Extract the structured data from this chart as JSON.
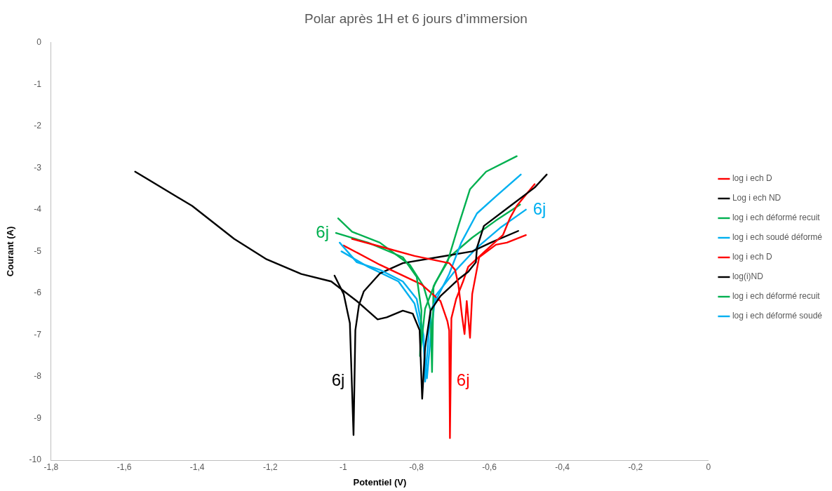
{
  "chart_data": {
    "type": "line",
    "title": "Polar après 1H et 6 jours d’immersion",
    "xlabel": "Potentiel (V)",
    "ylabel": "Courant (A)",
    "xlim": [
      -1.8,
      0
    ],
    "xticks": [
      {
        "value": -1.8,
        "label": "-1,8"
      },
      {
        "value": -1.6,
        "label": "-1,6"
      },
      {
        "value": -1.4,
        "label": "-1,4"
      },
      {
        "value": -1.2,
        "label": "-1,2"
      },
      {
        "value": -1,
        "label": "-1"
      },
      {
        "value": -0.8,
        "label": "-0,8"
      },
      {
        "value": -0.6,
        "label": "-0,6"
      },
      {
        "value": -0.4,
        "label": "-0,4"
      },
      {
        "value": -0.2,
        "label": "-0,2"
      },
      0
    ],
    "ylim": [
      -10,
      0
    ],
    "yticks": [
      -10,
      -9,
      -8,
      -7,
      -6,
      -5,
      -4,
      -3,
      -2,
      -1,
      0
    ],
    "grid": false,
    "legend": "right",
    "marker": "none",
    "line_style": "solid",
    "annotations": [
      {
        "text": "6j",
        "x": -0.977,
        "y": -8.1
      },
      {
        "text": "6j",
        "x": -0.709,
        "y": -8.1
      },
      {
        "text": "6j",
        "x": -1.02,
        "y": -4.56
      },
      {
        "text": "6j",
        "x": -0.5,
        "y": -4.0
      }
    ],
    "series": [
      {
        "name": "log i ech D",
        "color": "#ff0000",
        "x": [
          -0.976,
          -0.9,
          -0.805,
          -0.738,
          -0.71,
          -0.694,
          -0.685,
          -0.675,
          -0.668,
          -0.662,
          -0.653,
          -0.647,
          -0.628,
          -0.582,
          -0.552,
          -0.5
        ],
        "values": [
          -4.7,
          -4.88,
          -5.11,
          -5.23,
          -5.28,
          -5.44,
          -5.79,
          -6.54,
          -6.98,
          -6.19,
          -7.07,
          -6.02,
          -5.14,
          -4.84,
          -4.79,
          -4.61
        ]
      },
      {
        "name": "Log i ech ND",
        "color": "#000000",
        "x": [
          -1.57,
          -1.414,
          -1.299,
          -1.21,
          -1.115,
          -1.033,
          -0.963,
          -0.906,
          -0.881,
          -0.837,
          -0.81,
          -0.791,
          -0.784,
          -0.776,
          -0.761,
          -0.734,
          -0.685,
          -0.658,
          -0.637,
          -0.634,
          -0.615,
          -0.538,
          -0.476,
          -0.443
        ],
        "values": [
          -3.09,
          -3.91,
          -4.7,
          -5.19,
          -5.54,
          -5.72,
          -6.19,
          -6.63,
          -6.58,
          -6.42,
          -6.49,
          -6.89,
          -8.53,
          -7.3,
          -6.42,
          -6.07,
          -5.67,
          -5.49,
          -5.26,
          -4.91,
          -4.39,
          -3.88,
          -3.47,
          -3.16
        ]
      },
      {
        "name": "log i ech déformé recuit",
        "color": "#00b050",
        "x": [
          -1.02,
          -0.932,
          -0.837,
          -0.799,
          -0.786,
          -0.79,
          -0.776,
          -0.748,
          -0.715,
          -0.685,
          -0.653,
          -0.609,
          -0.525
        ],
        "values": [
          -4.56,
          -4.79,
          -5.14,
          -5.61,
          -6.42,
          -7.51,
          -6.37,
          -5.75,
          -5.26,
          -4.39,
          -3.51,
          -3.09,
          -2.72
        ]
      },
      {
        "name": "log i ech soudé déformé",
        "color": "#00b0f0",
        "x": [
          -1.01,
          -0.963,
          -0.9,
          -0.837,
          -0.799,
          -0.78,
          -0.776,
          -0.767,
          -0.761,
          -0.71,
          -0.677,
          -0.634,
          -0.582,
          -0.514
        ],
        "values": [
          -4.79,
          -5.26,
          -5.44,
          -5.72,
          -6.14,
          -7.02,
          -8.12,
          -7.07,
          -6.42,
          -5.54,
          -4.79,
          -4.09,
          -3.68,
          -3.16
        ]
      },
      {
        "name": "log i ech D",
        "color": "#ff0000",
        "x": [
          -0.999,
          -0.9,
          -0.786,
          -0.734,
          -0.715,
          -0.71,
          -0.708,
          -0.704,
          -0.691,
          -0.672,
          -0.658,
          -0.615,
          -0.563,
          -0.544,
          -0.525,
          -0.476
        ],
        "values": [
          -4.86,
          -5.32,
          -5.79,
          -6.19,
          -6.67,
          -6.89,
          -9.47,
          -6.6,
          -6.14,
          -5.72,
          -5.37,
          -5.02,
          -4.61,
          -4.21,
          -3.91,
          -3.39
        ]
      },
      {
        "name": "log(i)ND",
        "color": "#000000",
        "x": [
          -1.024,
          -0.999,
          -0.982,
          -0.972,
          -0.967,
          -0.957,
          -0.944,
          -0.9,
          -0.837,
          -0.742,
          -0.647,
          -0.596,
          -0.521
        ],
        "values": [
          -5.58,
          -6.02,
          -6.72,
          -9.4,
          -6.89,
          -6.28,
          -5.96,
          -5.53,
          -5.28,
          -5.14,
          -5.0,
          -4.79,
          -4.51
        ]
      },
      {
        "name": "log i ech déformé recuit",
        "color": "#00b050",
        "x": [
          -1.014,
          -0.976,
          -0.9,
          -0.818,
          -0.78,
          -0.761,
          -0.757,
          -0.753,
          -0.71,
          -0.647,
          -0.582,
          -0.516
        ],
        "values": [
          -4.21,
          -4.53,
          -4.79,
          -5.32,
          -5.84,
          -6.42,
          -7.89,
          -5.84,
          -5.14,
          -4.67,
          -4.26,
          -3.88
        ]
      },
      {
        "name": "log i ech déformé soudé",
        "color": "#00b0f0",
        "x": [
          -1.005,
          -0.932,
          -0.849,
          -0.805,
          -0.782,
          -0.771,
          -0.761,
          -0.748,
          -0.696,
          -0.634,
          -0.571,
          -0.5
        ],
        "values": [
          -5.0,
          -5.37,
          -5.72,
          -6.25,
          -7.07,
          -8.04,
          -7.07,
          -6.07,
          -5.49,
          -4.91,
          -4.44,
          -4.0
        ]
      }
    ]
  }
}
